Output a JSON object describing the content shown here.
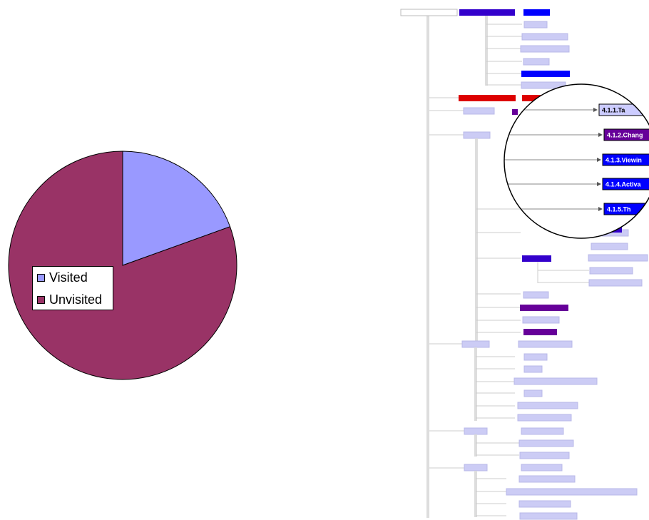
{
  "chart_data": {
    "type": "pie",
    "categories": [
      "Visited",
      "Unvisited"
    ],
    "values": [
      19.5,
      80.5
    ],
    "colors": [
      "#9999ff",
      "#993366"
    ],
    "legend_position": "left",
    "title": ""
  },
  "legend": {
    "items": [
      {
        "label": "Visited",
        "color": "#9999ff"
      },
      {
        "label": "Unvisited",
        "color": "#993366"
      }
    ]
  },
  "tree_view": {
    "colors": {
      "unvisited": "#ccccf5",
      "visited_dark": "#3300cc",
      "visited_blue": "#0000ff",
      "visited_purple": "#660099",
      "current": "#dd0000",
      "trunk": "#dddddd"
    },
    "magnifier_labels": [
      {
        "text": "4.1.1.Ta",
        "color": "#ccccff",
        "text_color": "#000000"
      },
      {
        "text": "4.1.2.Chang",
        "color": "#660099",
        "text_color": "#ffffff"
      },
      {
        "text": "4.1.3.Viewin",
        "color": "#0000ff",
        "text_color": "#ffffff"
      },
      {
        "text": "4.1.4.Activa",
        "color": "#0000ff",
        "text_color": "#ffffff"
      },
      {
        "text": "4.1.5.Th",
        "color": "#0000ff",
        "text_color": "#ffffff"
      }
    ]
  }
}
